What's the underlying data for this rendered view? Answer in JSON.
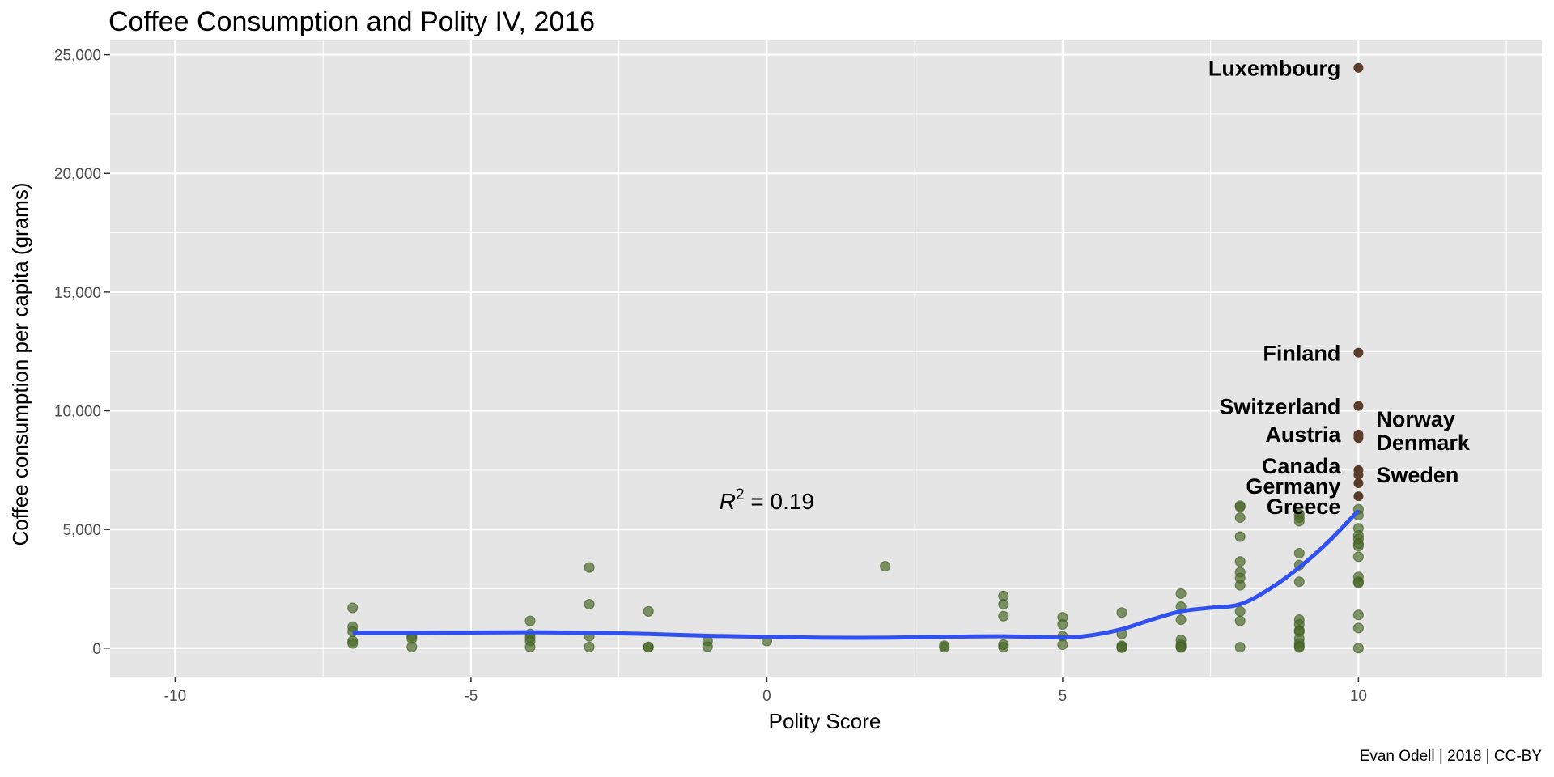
{
  "chart_data": {
    "type": "scatter",
    "title": "Coffee Consumption and Polity IV, 2016",
    "xlabel": "Polity Score",
    "ylabel": "Coffee consumption per capita (grams)",
    "caption": "Evan Odell | 2018 | CC-BY",
    "xlim": [
      -11.1,
      13.1
    ],
    "ylim": [
      -1200,
      25600
    ],
    "x_ticks": [
      -10,
      -5,
      0,
      5,
      10
    ],
    "x_tick_labels": [
      "-10",
      "-5",
      "0",
      "5",
      "10"
    ],
    "y_ticks": [
      0,
      5000,
      10000,
      15000,
      20000,
      25000
    ],
    "y_tick_labels": [
      "0",
      "5,000",
      "10,000",
      "15,000",
      "20,000",
      "25,000"
    ],
    "grid": true,
    "colors": {
      "panel": "#e5e5e5",
      "grid": "#ffffff",
      "point": "#4b6b2a",
      "highlight": "#5b3b2a",
      "smooth": "#3050f0"
    },
    "annotation": {
      "x": 0,
      "y": 6200,
      "base": "R",
      "sup": "2",
      "rest": " = 0.19"
    },
    "points": [
      [
        -7,
        1700
      ],
      [
        -7,
        900
      ],
      [
        -7,
        700
      ],
      [
        -7,
        300
      ],
      [
        -7,
        200
      ],
      [
        -6,
        500
      ],
      [
        -6,
        400
      ],
      [
        -6,
        50
      ],
      [
        -4,
        1150
      ],
      [
        -4,
        600
      ],
      [
        -4,
        450
      ],
      [
        -4,
        300
      ],
      [
        -4,
        50
      ],
      [
        -3,
        3400
      ],
      [
        -3,
        1850
      ],
      [
        -3,
        500
      ],
      [
        -3,
        50
      ],
      [
        -2,
        1550
      ],
      [
        -2,
        50
      ],
      [
        -2,
        40
      ],
      [
        -1,
        300
      ],
      [
        -1,
        60
      ],
      [
        0,
        300
      ],
      [
        2,
        3450
      ],
      [
        3,
        100
      ],
      [
        3,
        40
      ],
      [
        4,
        2200
      ],
      [
        4,
        1850
      ],
      [
        4,
        1350
      ],
      [
        4,
        150
      ],
      [
        4,
        40
      ],
      [
        5,
        1300
      ],
      [
        5,
        1000
      ],
      [
        5,
        500
      ],
      [
        5,
        150
      ],
      [
        6,
        1500
      ],
      [
        6,
        600
      ],
      [
        6,
        100
      ],
      [
        6,
        40
      ],
      [
        6,
        20
      ],
      [
        7,
        2300
      ],
      [
        7,
        1750
      ],
      [
        7,
        1200
      ],
      [
        7,
        350
      ],
      [
        7,
        150
      ],
      [
        7,
        60
      ],
      [
        7,
        30
      ],
      [
        8,
        6000
      ],
      [
        8,
        5950
      ],
      [
        8,
        5500
      ],
      [
        8,
        4700
      ],
      [
        8,
        3650
      ],
      [
        8,
        3200
      ],
      [
        8,
        2950
      ],
      [
        8,
        2650
      ],
      [
        8,
        1550
      ],
      [
        8,
        1150
      ],
      [
        8,
        40
      ],
      [
        9,
        5650
      ],
      [
        9,
        5500
      ],
      [
        9,
        5350
      ],
      [
        9,
        4000
      ],
      [
        9,
        3500
      ],
      [
        9,
        2800
      ],
      [
        9,
        1200
      ],
      [
        9,
        1000
      ],
      [
        9,
        750
      ],
      [
        9,
        700
      ],
      [
        9,
        400
      ],
      [
        9,
        200
      ],
      [
        9,
        80
      ],
      [
        9,
        30
      ],
      [
        10,
        5850
      ],
      [
        10,
        5600
      ],
      [
        10,
        5050
      ],
      [
        10,
        4750
      ],
      [
        10,
        4600
      ],
      [
        10,
        4400
      ],
      [
        10,
        4300
      ],
      [
        10,
        3850
      ],
      [
        10,
        3000
      ],
      [
        10,
        2800
      ],
      [
        10,
        2750
      ],
      [
        10,
        1400
      ],
      [
        10,
        850
      ],
      [
        10,
        0
      ]
    ],
    "highlighted": [
      {
        "name": "Luxembourg",
        "x": 10,
        "y": 24450,
        "side": "left",
        "label_y": 24450
      },
      {
        "name": "Finland",
        "x": 10,
        "y": 12450,
        "side": "left",
        "label_y": 12450
      },
      {
        "name": "Switzerland",
        "x": 10,
        "y": 10200,
        "side": "left",
        "label_y": 10200
      },
      {
        "name": "Norway",
        "x": 10,
        "y": 9000,
        "side": "right",
        "label_y": 9680
      },
      {
        "name": "Austria",
        "x": 10,
        "y": 8850,
        "side": "left",
        "label_y": 9030
      },
      {
        "name": "Denmark",
        "x": 10,
        "y": 8950,
        "side": "right",
        "label_y": 8690
      },
      {
        "name": "Canada",
        "x": 10,
        "y": 7500,
        "side": "left",
        "label_y": 7700
      },
      {
        "name": "Sweden",
        "x": 10,
        "y": 7300,
        "side": "right",
        "label_y": 7330
      },
      {
        "name": "Germany",
        "x": 10,
        "y": 6950,
        "side": "left",
        "label_y": 6850
      },
      {
        "name": "Greece",
        "x": 10,
        "y": 6400,
        "side": "left",
        "label_y": 6000
      }
    ],
    "smooth_line": [
      [
        -7,
        650
      ],
      [
        -6,
        650
      ],
      [
        -5,
        660
      ],
      [
        -4,
        670
      ],
      [
        -3,
        650
      ],
      [
        -2,
        600
      ],
      [
        -1,
        520
      ],
      [
        0,
        480
      ],
      [
        1,
        440
      ],
      [
        2,
        440
      ],
      [
        3,
        480
      ],
      [
        4,
        500
      ],
      [
        5,
        450
      ],
      [
        5.5,
        550
      ],
      [
        6,
        800
      ],
      [
        6.5,
        1200
      ],
      [
        7,
        1550
      ],
      [
        7.5,
        1700
      ],
      [
        8,
        1850
      ],
      [
        8.5,
        2500
      ],
      [
        9,
        3400
      ],
      [
        9.5,
        4500
      ],
      [
        10,
        5800
      ]
    ]
  }
}
